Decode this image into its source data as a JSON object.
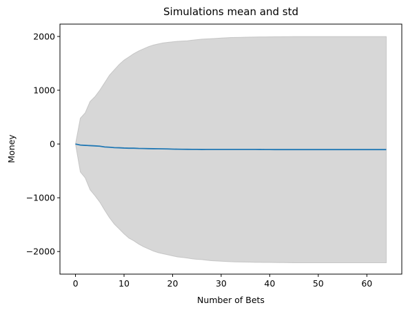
{
  "chart_data": {
    "type": "line",
    "title": "Simulations mean and std",
    "xlabel": "Number of Bets",
    "ylabel": "Money",
    "xlim": [
      -3.2,
      67.2
    ],
    "ylim": [
      -2420,
      2230
    ],
    "xticks": [
      0,
      10,
      20,
      30,
      40,
      50,
      60
    ],
    "yticks": [
      -2000,
      -1000,
      0,
      1000,
      2000
    ],
    "ytick_labels": [
      "−2000",
      "−1000",
      "0",
      "1000",
      "2000"
    ],
    "grid": false,
    "legend": "none",
    "colors": {
      "mean_line": "#1f77b4",
      "std_band": "#bdbdbd"
    },
    "x": [
      0,
      1,
      2,
      3,
      4,
      5,
      6,
      7,
      8,
      9,
      10,
      11,
      12,
      13,
      14,
      15,
      16,
      17,
      18,
      19,
      20,
      21,
      22,
      23,
      24,
      25,
      26,
      27,
      28,
      29,
      30,
      31,
      32,
      33,
      34,
      35,
      36,
      37,
      38,
      39,
      40,
      41,
      42,
      43,
      44,
      45,
      46,
      47,
      48,
      49,
      50,
      51,
      52,
      53,
      54,
      55,
      56,
      57,
      58,
      59,
      60,
      61,
      62,
      63,
      64
    ],
    "series": [
      {
        "role": "mean",
        "values": [
          0,
          -20,
          -25,
          -30,
          -35,
          -40,
          -55,
          -60,
          -68,
          -70,
          -75,
          -78,
          -78,
          -82,
          -84,
          -86,
          -88,
          -89,
          -90,
          -92,
          -95,
          -97,
          -98,
          -99,
          -100,
          -100,
          -102,
          -101,
          -101,
          -101,
          -101,
          -101,
          -101,
          -101,
          -101,
          -101,
          -101,
          -101,
          -102,
          -103,
          -103,
          -104,
          -104,
          -104,
          -104,
          -104,
          -104,
          -104,
          -104,
          -104,
          -104,
          -104,
          -104,
          -104,
          -104,
          -104,
          -104,
          -104,
          -104,
          -104,
          -104,
          -104,
          -104,
          -104,
          -104
        ]
      },
      {
        "role": "mean+std",
        "values": [
          0,
          480,
          580,
          790,
          880,
          1000,
          1140,
          1280,
          1380,
          1480,
          1560,
          1620,
          1680,
          1730,
          1770,
          1810,
          1840,
          1860,
          1880,
          1890,
          1900,
          1910,
          1915,
          1920,
          1930,
          1940,
          1950,
          1955,
          1960,
          1965,
          1970,
          1975,
          1980,
          1982,
          1984,
          1986,
          1988,
          1990,
          1991,
          1992,
          1993,
          1994,
          1995,
          1996,
          1997,
          1998,
          1998,
          1998,
          1998,
          1998,
          1998,
          1998,
          1998,
          1998,
          1998,
          1998,
          1998,
          1998,
          1998,
          1998,
          1998,
          1998,
          1998,
          1998,
          1998
        ]
      },
      {
        "role": "mean-std",
        "values": [
          0,
          -520,
          -630,
          -850,
          -960,
          -1080,
          -1230,
          -1370,
          -1490,
          -1580,
          -1670,
          -1750,
          -1800,
          -1860,
          -1910,
          -1950,
          -1990,
          -2020,
          -2040,
          -2060,
          -2080,
          -2100,
          -2110,
          -2120,
          -2135,
          -2145,
          -2150,
          -2160,
          -2170,
          -2175,
          -2180,
          -2185,
          -2190,
          -2192,
          -2194,
          -2196,
          -2198,
          -2200,
          -2201,
          -2202,
          -2203,
          -2204,
          -2205,
          -2206,
          -2207,
          -2208,
          -2208,
          -2208,
          -2208,
          -2208,
          -2208,
          -2208,
          -2208,
          -2208,
          -2208,
          -2208,
          -2208,
          -2208,
          -2208,
          -2208,
          -2208,
          -2208,
          -2208,
          -2208,
          -2208
        ]
      }
    ]
  }
}
